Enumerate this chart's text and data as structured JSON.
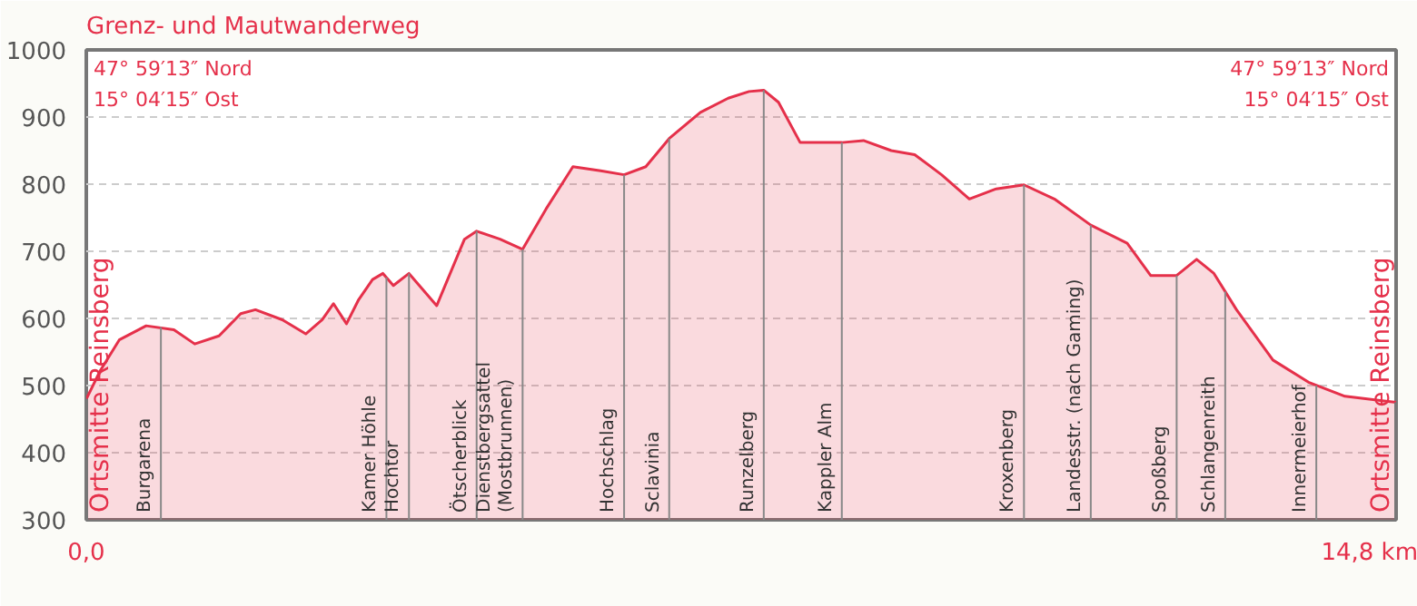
{
  "chart_data": {
    "type": "area",
    "title": "Grenz- und Mautwanderweg",
    "x": [
      0,
      0.16,
      0.38,
      0.69,
      1.01,
      1.25,
      1.53,
      1.78,
      1.95,
      2.26,
      2.53,
      2.72,
      2.85,
      3.0,
      3.14,
      3.3,
      3.42,
      3.54,
      3.72,
      4.04,
      4.36,
      4.5,
      4.77,
      5.03,
      5.3,
      5.61,
      5.93,
      6.2,
      6.45,
      6.72,
      7.08,
      7.4,
      7.64,
      7.81,
      7.98,
      8.23,
      8.71,
      8.96,
      9.28,
      9.55,
      9.86,
      10.18,
      10.49,
      10.81,
      11.16,
      11.58,
      12.0,
      12.27,
      12.57,
      12.8,
      13.0,
      13.26,
      13.68,
      14.09,
      14.51,
      15.1
    ],
    "series": [
      {
        "color": "#e5304a",
        "values": [
          480,
          522,
          568,
          589,
          583,
          562,
          574,
          607,
          613,
          598,
          577,
          598,
          622,
          592,
          628,
          658,
          667,
          649,
          667,
          619,
          718,
          730,
          718,
          703,
          763,
          826,
          820,
          814,
          826,
          868,
          907,
          928,
          938,
          940,
          922,
          862,
          862,
          865,
          850,
          844,
          814,
          778,
          793,
          799,
          778,
          739,
          712,
          664,
          664,
          688,
          667,
          613,
          538,
          505,
          484,
          475
        ]
      }
    ],
    "xlim": [
      0,
      15.1
    ],
    "ylim": [
      300,
      1000
    ],
    "xticks": [
      {
        "value": 0,
        "label": "0,0"
      },
      {
        "value": 14.8,
        "label": "14,8 km"
      }
    ],
    "yticks": [
      300,
      400,
      500,
      600,
      700,
      800,
      900,
      1000
    ],
    "grid": "y",
    "annotations": [
      "47° 59′13″ Nord\n15° 04′15″ Ost",
      "47° 59′13″ Nord\n15° 04′15″ Ost",
      {
        "text": "Ortsmitte Reinsberg",
        "x": 0,
        "y": 480
      },
      {
        "text": "Burgarena",
        "x": 0.86,
        "y": 587
      },
      {
        "text": "Kamer Höhle",
        "x": 3.46,
        "y": 661
      },
      {
        "text": "Hochtor",
        "x": 3.72,
        "y": 667
      },
      {
        "text": "Ötscherblick",
        "x": 4.5,
        "y": 730
      },
      {
        "text": "Dienstbergsattel\n(Mostbrunnen)",
        "x": 5.03,
        "y": 703
      },
      {
        "text": "Hochschlag",
        "x": 6.2,
        "y": 814
      },
      {
        "text": "Sclavinia",
        "x": 6.72,
        "y": 868
      },
      {
        "text": "Runzelberg",
        "x": 7.81,
        "y": 940
      },
      {
        "text": "Kappler Alm",
        "x": 8.71,
        "y": 862
      },
      {
        "text": "Kroxenberg",
        "x": 10.81,
        "y": 799
      },
      {
        "text": "Landesstr. (nach Gaming)",
        "x": 11.58,
        "y": 739
      },
      {
        "text": "Spoßberg",
        "x": 12.57,
        "y": 664
      },
      {
        "text": "Schlangenreith",
        "x": 13.13,
        "y": 640
      },
      {
        "text": "Innermeierhof",
        "x": 14.18,
        "y": 500
      },
      {
        "text": "Ortsmitte Reinsberg",
        "x": 15.1,
        "y": 475
      }
    ]
  }
}
